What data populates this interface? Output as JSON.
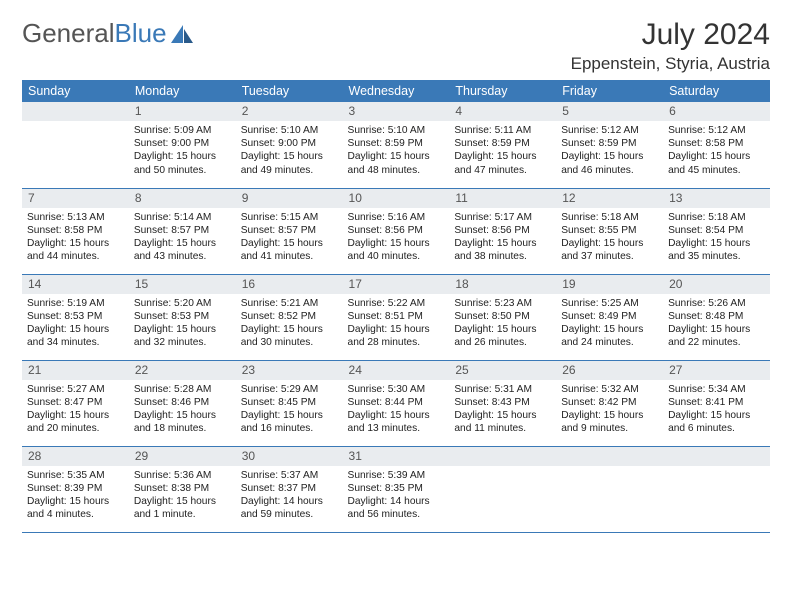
{
  "logo": {
    "text_gray": "General",
    "text_blue": "Blue"
  },
  "title": "July 2024",
  "location": "Eppenstein, Styria, Austria",
  "colors": {
    "header_bg": "#3a79b7",
    "header_text": "#ffffff",
    "daynum_bg": "#e9ecef",
    "rule": "#3a79b7"
  },
  "day_headers": [
    "Sunday",
    "Monday",
    "Tuesday",
    "Wednesday",
    "Thursday",
    "Friday",
    "Saturday"
  ],
  "weeks": [
    [
      null,
      {
        "n": "1",
        "sr": "5:09 AM",
        "ss": "9:00 PM",
        "dl": "15 hours and 50 minutes."
      },
      {
        "n": "2",
        "sr": "5:10 AM",
        "ss": "9:00 PM",
        "dl": "15 hours and 49 minutes."
      },
      {
        "n": "3",
        "sr": "5:10 AM",
        "ss": "8:59 PM",
        "dl": "15 hours and 48 minutes."
      },
      {
        "n": "4",
        "sr": "5:11 AM",
        "ss": "8:59 PM",
        "dl": "15 hours and 47 minutes."
      },
      {
        "n": "5",
        "sr": "5:12 AM",
        "ss": "8:59 PM",
        "dl": "15 hours and 46 minutes."
      },
      {
        "n": "6",
        "sr": "5:12 AM",
        "ss": "8:58 PM",
        "dl": "15 hours and 45 minutes."
      }
    ],
    [
      {
        "n": "7",
        "sr": "5:13 AM",
        "ss": "8:58 PM",
        "dl": "15 hours and 44 minutes."
      },
      {
        "n": "8",
        "sr": "5:14 AM",
        "ss": "8:57 PM",
        "dl": "15 hours and 43 minutes."
      },
      {
        "n": "9",
        "sr": "5:15 AM",
        "ss": "8:57 PM",
        "dl": "15 hours and 41 minutes."
      },
      {
        "n": "10",
        "sr": "5:16 AM",
        "ss": "8:56 PM",
        "dl": "15 hours and 40 minutes."
      },
      {
        "n": "11",
        "sr": "5:17 AM",
        "ss": "8:56 PM",
        "dl": "15 hours and 38 minutes."
      },
      {
        "n": "12",
        "sr": "5:18 AM",
        "ss": "8:55 PM",
        "dl": "15 hours and 37 minutes."
      },
      {
        "n": "13",
        "sr": "5:18 AM",
        "ss": "8:54 PM",
        "dl": "15 hours and 35 minutes."
      }
    ],
    [
      {
        "n": "14",
        "sr": "5:19 AM",
        "ss": "8:53 PM",
        "dl": "15 hours and 34 minutes."
      },
      {
        "n": "15",
        "sr": "5:20 AM",
        "ss": "8:53 PM",
        "dl": "15 hours and 32 minutes."
      },
      {
        "n": "16",
        "sr": "5:21 AM",
        "ss": "8:52 PM",
        "dl": "15 hours and 30 minutes."
      },
      {
        "n": "17",
        "sr": "5:22 AM",
        "ss": "8:51 PM",
        "dl": "15 hours and 28 minutes."
      },
      {
        "n": "18",
        "sr": "5:23 AM",
        "ss": "8:50 PM",
        "dl": "15 hours and 26 minutes."
      },
      {
        "n": "19",
        "sr": "5:25 AM",
        "ss": "8:49 PM",
        "dl": "15 hours and 24 minutes."
      },
      {
        "n": "20",
        "sr": "5:26 AM",
        "ss": "8:48 PM",
        "dl": "15 hours and 22 minutes."
      }
    ],
    [
      {
        "n": "21",
        "sr": "5:27 AM",
        "ss": "8:47 PM",
        "dl": "15 hours and 20 minutes."
      },
      {
        "n": "22",
        "sr": "5:28 AM",
        "ss": "8:46 PM",
        "dl": "15 hours and 18 minutes."
      },
      {
        "n": "23",
        "sr": "5:29 AM",
        "ss": "8:45 PM",
        "dl": "15 hours and 16 minutes."
      },
      {
        "n": "24",
        "sr": "5:30 AM",
        "ss": "8:44 PM",
        "dl": "15 hours and 13 minutes."
      },
      {
        "n": "25",
        "sr": "5:31 AM",
        "ss": "8:43 PM",
        "dl": "15 hours and 11 minutes."
      },
      {
        "n": "26",
        "sr": "5:32 AM",
        "ss": "8:42 PM",
        "dl": "15 hours and 9 minutes."
      },
      {
        "n": "27",
        "sr": "5:34 AM",
        "ss": "8:41 PM",
        "dl": "15 hours and 6 minutes."
      }
    ],
    [
      {
        "n": "28",
        "sr": "5:35 AM",
        "ss": "8:39 PM",
        "dl": "15 hours and 4 minutes."
      },
      {
        "n": "29",
        "sr": "5:36 AM",
        "ss": "8:38 PM",
        "dl": "15 hours and 1 minute."
      },
      {
        "n": "30",
        "sr": "5:37 AM",
        "ss": "8:37 PM",
        "dl": "14 hours and 59 minutes."
      },
      {
        "n": "31",
        "sr": "5:39 AM",
        "ss": "8:35 PM",
        "dl": "14 hours and 56 minutes."
      },
      null,
      null,
      null
    ]
  ],
  "labels": {
    "sunrise": "Sunrise: ",
    "sunset": "Sunset: ",
    "daylight": "Daylight: "
  }
}
